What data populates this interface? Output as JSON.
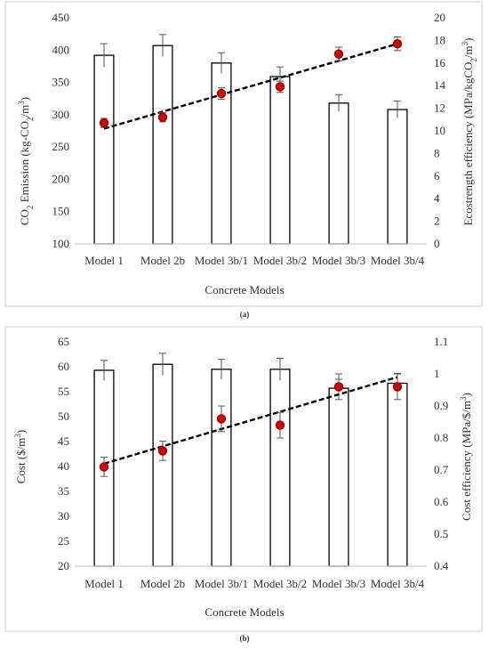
{
  "chart_data": [
    {
      "type": "bar",
      "panel_label": "(a)",
      "categories": [
        "Model 1",
        "Model 2b",
        "Model 3b/1",
        "Model 3b/2",
        "Model 3b/3",
        "Model 3b/4"
      ],
      "xlabel": "Concrete Models",
      "ylabel": "CO2 Emission (kg-CO2/m3)",
      "ylabel_parts": {
        "pre": "CO",
        "sub1": "2",
        "mid": " Emission (kg-CO",
        "sub2": "2",
        "mid2": "/m",
        "sup": "3",
        "post": ")"
      },
      "ylabel2": "Ecostrength efficiency (MPa/kgCO2/m3)",
      "ylabel2_parts": {
        "pre": "Ecostrength efficiency (MPa/kgCO",
        "sub1": "2",
        "mid": "/m",
        "sup": "3",
        "post": ")"
      },
      "ylim": [
        100,
        450
      ],
      "yticks": [
        100,
        150,
        200,
        250,
        300,
        350,
        400,
        450
      ],
      "y2lim": [
        0,
        20
      ],
      "y2ticks": [
        0,
        2,
        4,
        6,
        8,
        10,
        12,
        14,
        16,
        18,
        20
      ],
      "bars": {
        "values": [
          392,
          407,
          380,
          359,
          318,
          308
        ],
        "errors": [
          18,
          17,
          16,
          15,
          13,
          13
        ],
        "fill": "#ffffff",
        "stroke": "#000000"
      },
      "points": {
        "values": [
          10.7,
          11.2,
          13.3,
          13.9,
          16.8,
          17.7
        ],
        "errors": [
          0.4,
          0.4,
          0.5,
          0.5,
          0.6,
          0.6
        ],
        "color": "#cc0000"
      },
      "trendline": {
        "from": 10.2,
        "to": 17.7,
        "style": "dashed"
      },
      "grid": false
    },
    {
      "type": "bar",
      "panel_label": "(b)",
      "categories": [
        "Model 1",
        "Model 2b",
        "Model 3b/1",
        "Model 3b/2",
        "Model 3b/3",
        "Model 3b/4"
      ],
      "xlabel": "Concrete Models",
      "ylabel": "Cost ($/m3)",
      "ylabel_parts": {
        "pre": "Cost ($/m",
        "sup": "3",
        "post": ")"
      },
      "ylabel2": "Cost efficiency (MPa/$/m3)",
      "ylabel2_parts": {
        "pre": "Cost efficiency (MPa/$/m",
        "sup": "3",
        "post": ")"
      },
      "ylim": [
        20,
        65
      ],
      "yticks": [
        20,
        25,
        30,
        35,
        40,
        45,
        50,
        55,
        60,
        65
      ],
      "y2lim": [
        0.4,
        1.1
      ],
      "y2ticks": [
        0.4,
        0.5,
        0.6,
        0.7,
        0.8,
        0.9,
        1,
        1.1
      ],
      "bars": {
        "values": [
          59.3,
          60.5,
          59.5,
          59.5,
          55.7,
          56.7
        ],
        "errors": [
          2.0,
          2.2,
          2.0,
          2.2,
          1.8,
          2.0
        ],
        "fill": "#ffffff",
        "stroke": "#000000"
      },
      "points": {
        "values": [
          0.71,
          0.76,
          0.86,
          0.84,
          0.96,
          0.96
        ],
        "errors": [
          0.03,
          0.03,
          0.04,
          0.04,
          0.04,
          0.04
        ],
        "color": "#cc0000"
      },
      "trendline": {
        "from": 0.72,
        "to": 0.99,
        "style": "dashed"
      },
      "grid": false
    }
  ]
}
